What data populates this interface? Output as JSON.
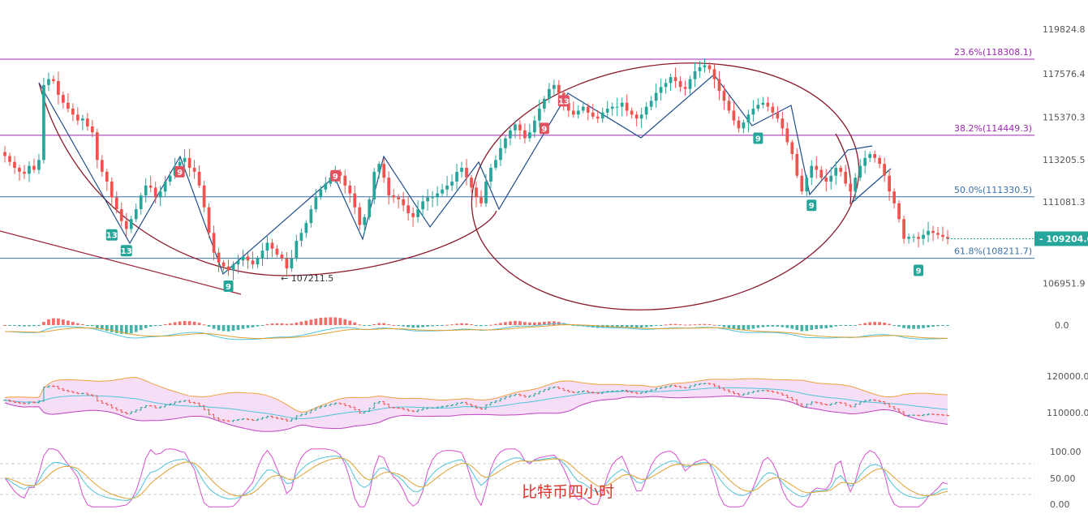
{
  "chart_data": [
    {
      "type": "candlestick",
      "title": "",
      "price_axis_ticks": [
        "119824.8",
        "117576.4",
        "115370.3",
        "113205.5",
        "111081.3",
        "109204.6",
        "106951.9"
      ],
      "ylim": [
        106100,
        120900
      ],
      "current_price": "109204.6",
      "fibonacci_levels": [
        {
          "label": "23.6%(118308.1)",
          "value": 118308.1,
          "color": "#9c27b0"
        },
        {
          "label": "38.2%(114449.3)",
          "value": 114449.3,
          "color": "#9c27b0"
        },
        {
          "label": "50.0%(111330.5)",
          "value": 111330.5,
          "color": "#3a6fa5"
        },
        {
          "label": "61.8%(108211.7)",
          "value": 108211.7,
          "color": "#3a6fa5"
        }
      ],
      "annotation_low": "107211.5",
      "low_value": 107211.5,
      "td_markers": [
        {
          "label": "13",
          "color": "#26a69a",
          "i": 22,
          "value": 109400,
          "pos": "below"
        },
        {
          "label": "13",
          "color": "#26a69a",
          "i": 25,
          "value": 108600,
          "pos": "below"
        },
        {
          "label": "9",
          "color": "#e05260",
          "i": 36,
          "value": 112600,
          "pos": "above"
        },
        {
          "label": "9",
          "color": "#26a69a",
          "i": 46,
          "value": 106800,
          "pos": "below"
        },
        {
          "label": "9",
          "color": "#e05260",
          "i": 68,
          "value": 112400,
          "pos": "above"
        },
        {
          "label": "9",
          "color": "#e05260",
          "i": 111,
          "value": 114800,
          "pos": "above"
        },
        {
          "label": "13",
          "color": "#e05260",
          "i": 115,
          "value": 116200,
          "pos": "above"
        },
        {
          "label": "9",
          "color": "#26a69a",
          "i": 155,
          "value": 114300,
          "pos": "below"
        },
        {
          "label": "9",
          "color": "#26a69a",
          "i": 166,
          "value": 110900,
          "pos": "below"
        },
        {
          "label": "9",
          "color": "#26a69a",
          "i": 188,
          "value": 107600,
          "pos": "below"
        }
      ],
      "closes": [
        113400,
        113100,
        112800,
        112600,
        112500,
        112900,
        112700,
        113200,
        117000,
        117300,
        117200,
        116500,
        116100,
        115800,
        115500,
        115200,
        115300,
        114900,
        114600,
        113200,
        112600,
        112100,
        111300,
        110700,
        110100,
        109700,
        110200,
        110700,
        111400,
        111900,
        111800,
        111300,
        111600,
        112100,
        112400,
        112900,
        113100,
        113300,
        112800,
        112600,
        111900,
        110800,
        109500,
        108500,
        108000,
        107800,
        107600,
        107900,
        108100,
        108300,
        108100,
        107900,
        108200,
        108600,
        109000,
        108700,
        108400,
        108200,
        107700,
        108200,
        109100,
        109500,
        110000,
        110700,
        111300,
        111700,
        112000,
        112300,
        112600,
        112400,
        111900,
        111500,
        110800,
        109900,
        110300,
        111200,
        112600,
        113000,
        112300,
        111400,
        111300,
        111200,
        110900,
        110500,
        110300,
        110700,
        111100,
        111300,
        111300,
        111500,
        111700,
        111900,
        112100,
        112600,
        112800,
        112300,
        111800,
        111300,
        111000,
        112100,
        112800,
        113200,
        113800,
        114300,
        114700,
        115000,
        114700,
        114300,
        114600,
        115200,
        115800,
        116300,
        116800,
        117000,
        116600,
        116100,
        115700,
        115500,
        115700,
        115900,
        115600,
        115400,
        115300,
        115600,
        115800,
        115900,
        115900,
        116100,
        115700,
        115500,
        115300,
        115500,
        115900,
        116200,
        116600,
        116900,
        117100,
        117400,
        117200,
        116900,
        116800,
        117300,
        117700,
        117900,
        118000,
        117800,
        117300,
        116700,
        116200,
        115700,
        115200,
        114800,
        115100,
        115500,
        115800,
        116000,
        116100,
        115900,
        115600,
        115300,
        114800,
        114100,
        113500,
        112400,
        111600,
        112300,
        112900,
        112700,
        112300,
        112100,
        112400,
        112800,
        112600,
        112000,
        111600,
        112300,
        112900,
        113300,
        113500,
        113300,
        113000,
        112400,
        111600,
        111000,
        110200,
        109200,
        109300,
        109300,
        109200,
        109400,
        109600,
        109500,
        109400,
        109300,
        109200
      ],
      "subcharts": [
        {
          "name": "macd",
          "ticks": [
            "0.0"
          ]
        },
        {
          "name": "boll",
          "ticks": [
            "120000.0",
            "110000.0"
          ]
        },
        {
          "name": "kdj",
          "ticks": [
            "100.00",
            "50.00",
            "0.00"
          ]
        }
      ]
    }
  ],
  "watermark": "比特币四小时",
  "colors": {
    "up": "#26a69a",
    "down": "#ef5350",
    "arc": "#8b1a2b",
    "zigzag": "#1f4e8c",
    "trendline": "#a0223a",
    "k_line": "#d94fd0",
    "d_line": "#4fc3d9",
    "j_line": "#e0a030",
    "boll_mid": "#4fc3d9"
  }
}
